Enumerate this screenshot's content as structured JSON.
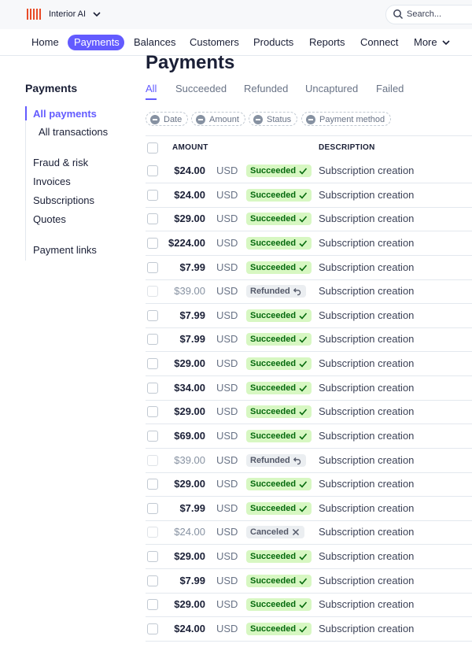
{
  "topbar": {
    "brand": "Interior AI",
    "search": "Search..."
  },
  "nav": [
    "Home",
    "Payments",
    "Balances",
    "Customers",
    "Products",
    "Reports",
    "Connect",
    "More"
  ],
  "sidebar": {
    "title": "Payments",
    "items": [
      "All payments",
      "All transactions",
      "Fraud & risk",
      "Invoices",
      "Subscriptions",
      "Quotes",
      "Payment links"
    ]
  },
  "main": {
    "title": "Payments",
    "tabs": [
      "All",
      "Succeeded",
      "Refunded",
      "Uncaptured",
      "Failed"
    ],
    "filters": [
      "Date",
      "Amount",
      "Status",
      "Payment method"
    ],
    "columns": [
      "AMOUNT",
      "DESCRIPTION"
    ],
    "rows": [
      {
        "amount": "$24.00",
        "currency": "USD",
        "status": "Succeeded",
        "description": "Subscription creation"
      },
      {
        "amount": "$24.00",
        "currency": "USD",
        "status": "Succeeded",
        "description": "Subscription creation"
      },
      {
        "amount": "$29.00",
        "currency": "USD",
        "status": "Succeeded",
        "description": "Subscription creation"
      },
      {
        "amount": "$224.00",
        "currency": "USD",
        "status": "Succeeded",
        "description": "Subscription creation"
      },
      {
        "amount": "$7.99",
        "currency": "USD",
        "status": "Succeeded",
        "description": "Subscription creation"
      },
      {
        "amount": "$39.00",
        "currency": "USD",
        "status": "Refunded",
        "description": "Subscription creation"
      },
      {
        "amount": "$7.99",
        "currency": "USD",
        "status": "Succeeded",
        "description": "Subscription creation"
      },
      {
        "amount": "$7.99",
        "currency": "USD",
        "status": "Succeeded",
        "description": "Subscription creation"
      },
      {
        "amount": "$29.00",
        "currency": "USD",
        "status": "Succeeded",
        "description": "Subscription creation"
      },
      {
        "amount": "$34.00",
        "currency": "USD",
        "status": "Succeeded",
        "description": "Subscription creation"
      },
      {
        "amount": "$29.00",
        "currency": "USD",
        "status": "Succeeded",
        "description": "Subscription creation"
      },
      {
        "amount": "$69.00",
        "currency": "USD",
        "status": "Succeeded",
        "description": "Subscription creation"
      },
      {
        "amount": "$39.00",
        "currency": "USD",
        "status": "Refunded",
        "description": "Subscription creation"
      },
      {
        "amount": "$29.00",
        "currency": "USD",
        "status": "Succeeded",
        "description": "Subscription creation"
      },
      {
        "amount": "$7.99",
        "currency": "USD",
        "status": "Succeeded",
        "description": "Subscription creation"
      },
      {
        "amount": "$24.00",
        "currency": "USD",
        "status": "Canceled",
        "description": "Subscription creation"
      },
      {
        "amount": "$29.00",
        "currency": "USD",
        "status": "Succeeded",
        "description": "Subscription creation"
      },
      {
        "amount": "$7.99",
        "currency": "USD",
        "status": "Succeeded",
        "description": "Subscription creation"
      },
      {
        "amount": "$29.00",
        "currency": "USD",
        "status": "Succeeded",
        "description": "Subscription creation"
      },
      {
        "amount": "$24.00",
        "currency": "USD",
        "status": "Succeeded",
        "description": "Subscription creation"
      }
    ]
  }
}
